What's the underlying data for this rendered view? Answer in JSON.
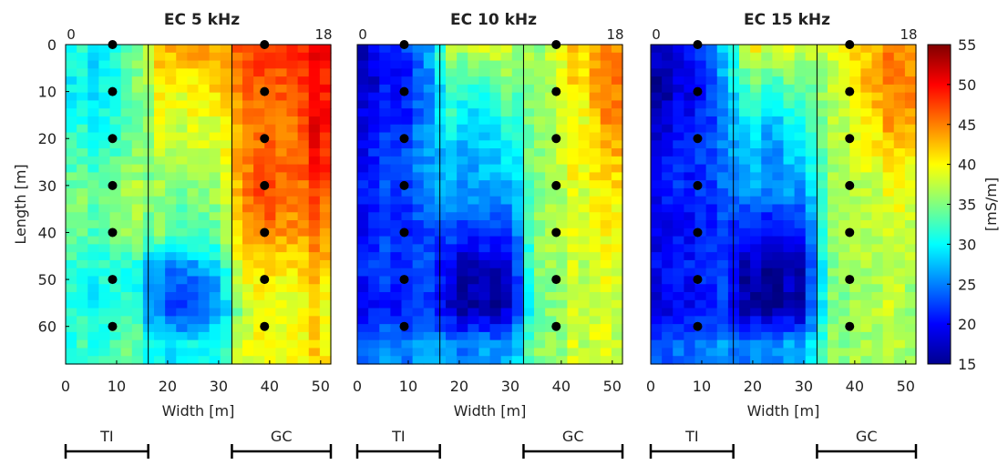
{
  "chart_data": {
    "type": "heatmap",
    "colorbar": {
      "label": "[mS/m]",
      "range": [
        15,
        55
      ],
      "ticks": [
        15,
        20,
        25,
        30,
        35,
        40,
        45,
        50,
        55
      ],
      "colormap": "jet"
    },
    "x_range": [
      0,
      52
    ],
    "y_range": [
      0,
      68
    ],
    "y_reversed": true,
    "xticks": [
      0,
      10,
      20,
      30,
      40,
      50
    ],
    "yticks": [
      0,
      10,
      20,
      30,
      40,
      50,
      60
    ],
    "xlabel": "Width [m]",
    "ylabel": "Length [m]",
    "transect_start_label": "0",
    "transect_end_label": "18",
    "zone_boundaries_x": [
      16.2,
      32.6
    ],
    "probe_lines": [
      {
        "x": 9.2,
        "y": [
          0,
          10,
          20,
          30,
          40,
          50,
          60
        ]
      },
      {
        "x": 39.0,
        "y": [
          0,
          10,
          20,
          30,
          40,
          50,
          60
        ]
      }
    ],
    "zones": [
      {
        "label": "TI",
        "x_from": 0,
        "x_to": 16.2
      },
      {
        "label": "GC",
        "x_from": 32.6,
        "x_to": 52
      }
    ],
    "row_positions_m": [
      0,
      8,
      16,
      24,
      32,
      40,
      48,
      56,
      64
    ],
    "panels": [
      {
        "title": "EC 5 kHz",
        "column_centers_m": [
          3,
          9,
          13.5,
          19,
          24.5,
          29.5,
          35,
          40,
          45,
          49.5
        ],
        "values_mS_m": [
          [
            30,
            29,
            33,
            45,
            44,
            43,
            46,
            47,
            48,
            50
          ],
          [
            29,
            30,
            33,
            42,
            40,
            41,
            45,
            46,
            47,
            50
          ],
          [
            30,
            31,
            33,
            40,
            39,
            38,
            44,
            45,
            46,
            50
          ],
          [
            32,
            32,
            34,
            38,
            37,
            37,
            44,
            45,
            46,
            49
          ],
          [
            34,
            35,
            36,
            36,
            35,
            35,
            44,
            47,
            45,
            47
          ],
          [
            33,
            34,
            35,
            35,
            33,
            33,
            43,
            44,
            44,
            45
          ],
          [
            31,
            31,
            30,
            26,
            25,
            27,
            40,
            40,
            41,
            42
          ],
          [
            30,
            30,
            31,
            24,
            22,
            24,
            37,
            38,
            39,
            40
          ],
          [
            31,
            32,
            33,
            30,
            30,
            30,
            38,
            39,
            40,
            41
          ]
        ]
      },
      {
        "title": "EC 10 kHz",
        "column_centers_m": [
          3,
          9,
          13.5,
          19,
          24.5,
          29.5,
          35,
          40,
          45,
          49.5
        ],
        "values_mS_m": [
          [
            19,
            23,
            25,
            37,
            39,
            39,
            35,
            40,
            42,
            43
          ],
          [
            18,
            21,
            23,
            34,
            32,
            35,
            35,
            40,
            42,
            45
          ],
          [
            20,
            22,
            24,
            31,
            28,
            32,
            35,
            39,
            40,
            44
          ],
          [
            21,
            23,
            25,
            28,
            27,
            29,
            35,
            39,
            40,
            42
          ],
          [
            22,
            23,
            24,
            27,
            26,
            26,
            35,
            38,
            39,
            40
          ],
          [
            21,
            21,
            22,
            22,
            22,
            22,
            35,
            39,
            38,
            39
          ],
          [
            22,
            22,
            22,
            18,
            17,
            18,
            35,
            37,
            38,
            38
          ],
          [
            20,
            21,
            22,
            17,
            16,
            17,
            34,
            37,
            38,
            37
          ],
          [
            24,
            25,
            25,
            25,
            26,
            26,
            35,
            37,
            38,
            37
          ]
        ]
      },
      {
        "title": "EC 15 kHz",
        "column_centers_m": [
          3,
          9,
          13.5,
          19,
          24.5,
          29.5,
          35,
          40,
          45,
          49.5
        ],
        "values_mS_m": [
          [
            19,
            23,
            26,
            40,
            40,
            38,
            38,
            42,
            44,
            45
          ],
          [
            17,
            20,
            24,
            35,
            33,
            34,
            37,
            42,
            44,
            46
          ],
          [
            19,
            21,
            24,
            31,
            28,
            32,
            36,
            40,
            42,
            45
          ],
          [
            21,
            22,
            24,
            28,
            26,
            28,
            36,
            39,
            40,
            42
          ],
          [
            21,
            22,
            23,
            26,
            25,
            25,
            35,
            38,
            38,
            40
          ],
          [
            20,
            21,
            22,
            21,
            21,
            21,
            35,
            39,
            37,
            39
          ],
          [
            21,
            22,
            22,
            17,
            16,
            17,
            35,
            37,
            37,
            38
          ],
          [
            19,
            20,
            22,
            16,
            16,
            17,
            34,
            37,
            37,
            37
          ],
          [
            24,
            25,
            26,
            25,
            26,
            26,
            35,
            37,
            37,
            37
          ]
        ]
      }
    ]
  }
}
